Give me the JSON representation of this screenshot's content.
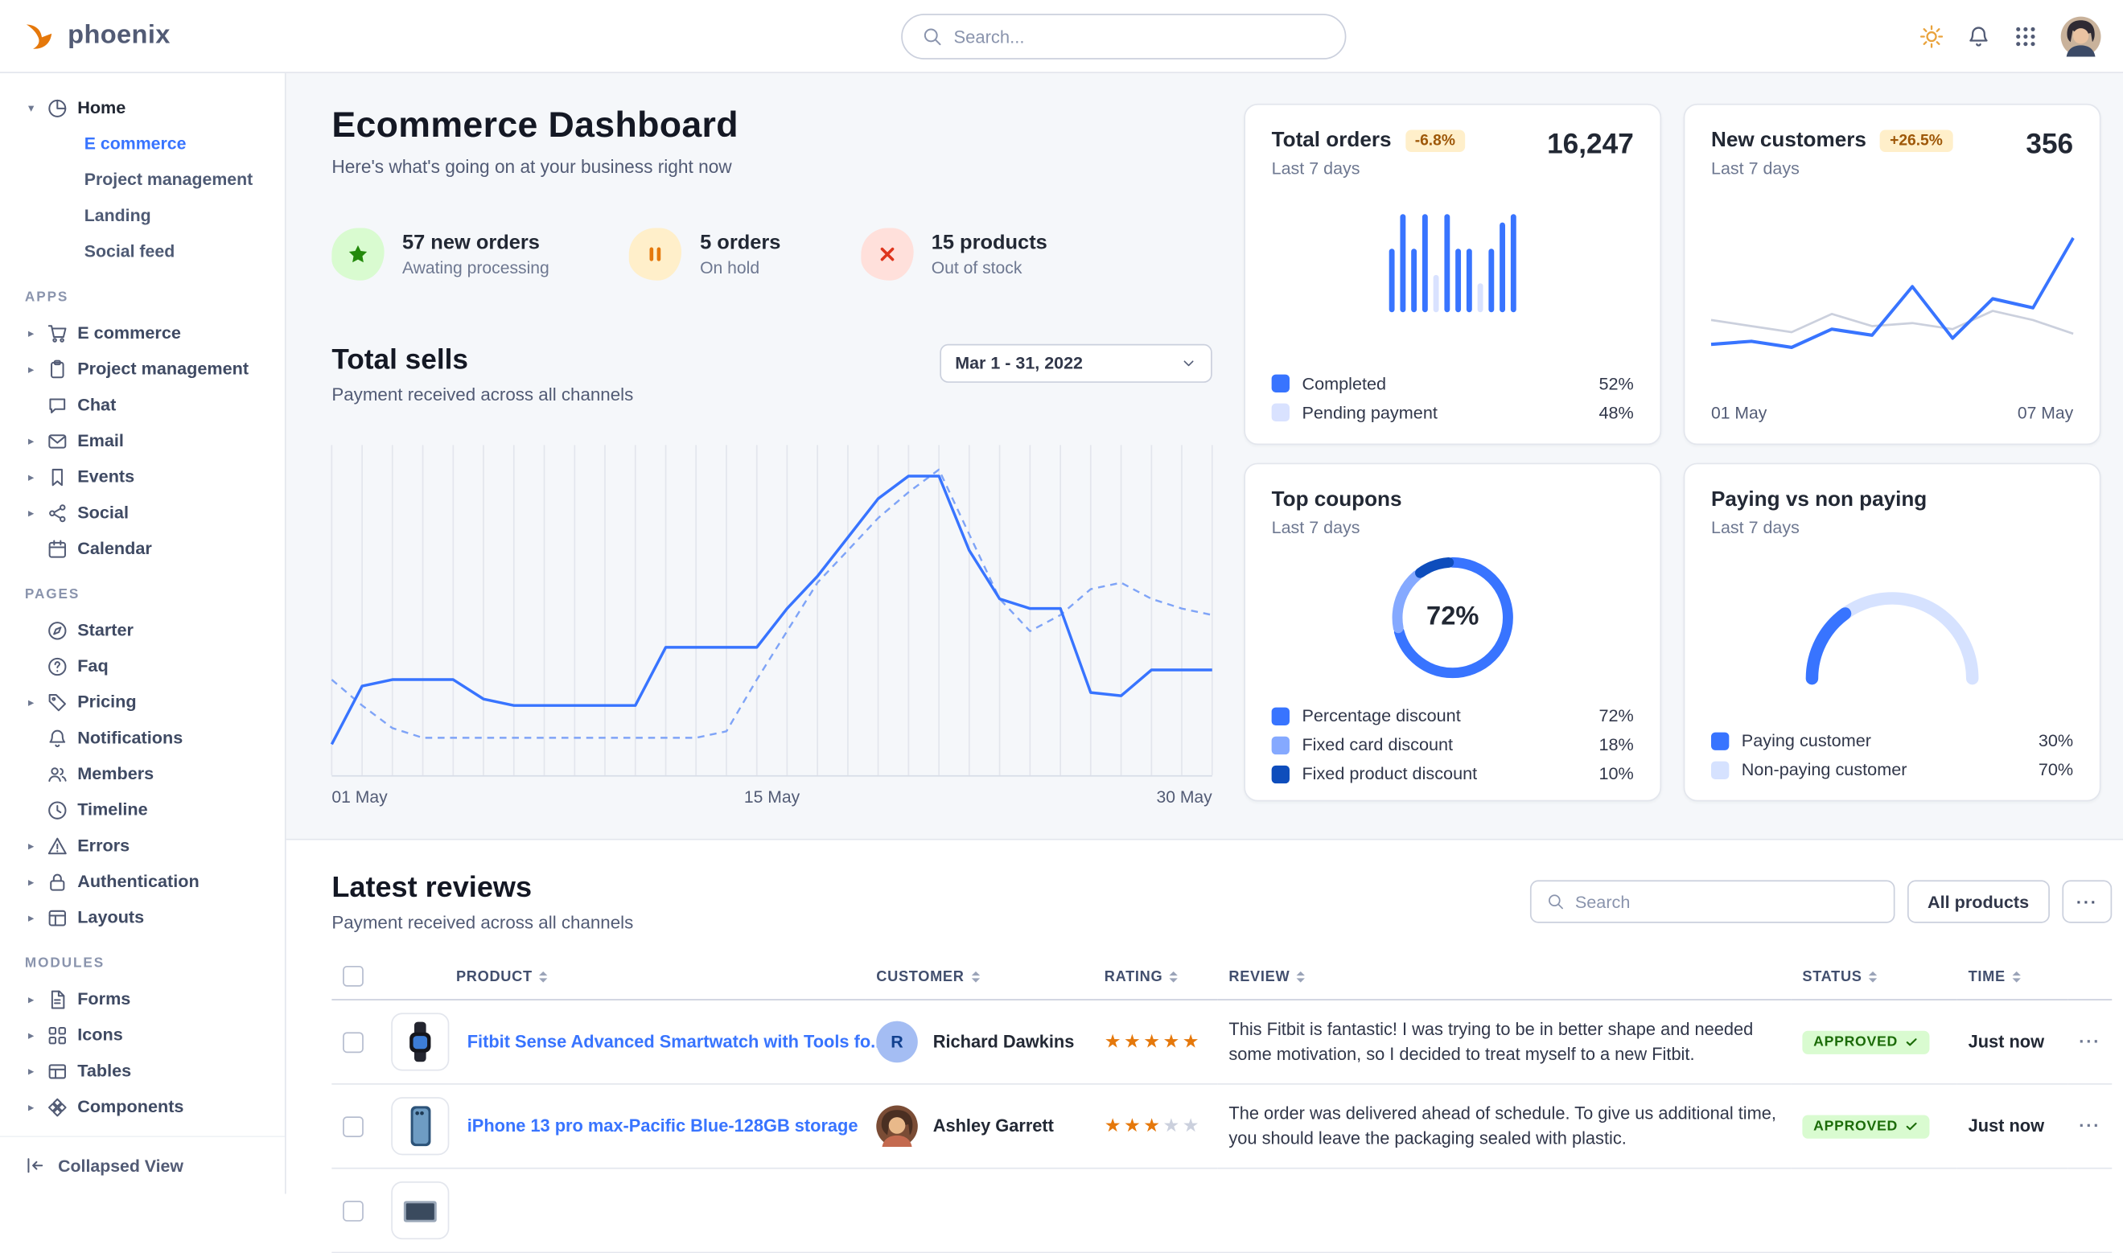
{
  "colors": {
    "primary": "#3874ff",
    "success_text": "#1c6c09",
    "success_bg": "#d9fbd0",
    "warning_text": "#9e5708",
    "warning_bg": "#ffefca",
    "danger": "#de351d",
    "orange": "#e5780b"
  },
  "topbar": {
    "logo_text": "phoenix",
    "search_placeholder": "Search..."
  },
  "sidebar": {
    "home": {
      "label": "Home",
      "children": [
        {
          "label": "E commerce"
        },
        {
          "label": "Project management"
        },
        {
          "label": "Landing"
        },
        {
          "label": "Social feed"
        }
      ]
    },
    "sections": [
      {
        "title": "APPS",
        "items": [
          {
            "label": "E commerce"
          },
          {
            "label": "Project management"
          },
          {
            "label": "Chat"
          },
          {
            "label": "Email"
          },
          {
            "label": "Events"
          },
          {
            "label": "Social"
          },
          {
            "label": "Calendar"
          }
        ]
      },
      {
        "title": "PAGES",
        "items": [
          {
            "label": "Starter"
          },
          {
            "label": "Faq"
          },
          {
            "label": "Pricing"
          },
          {
            "label": "Notifications"
          },
          {
            "label": "Members"
          },
          {
            "label": "Timeline"
          },
          {
            "label": "Errors"
          },
          {
            "label": "Authentication"
          },
          {
            "label": "Layouts"
          }
        ]
      },
      {
        "title": "MODULES",
        "items": [
          {
            "label": "Forms"
          },
          {
            "label": "Icons"
          },
          {
            "label": "Tables"
          },
          {
            "label": "Components"
          }
        ]
      }
    ],
    "collapse_label": "Collapsed View"
  },
  "header": {
    "title": "Ecommerce Dashboard",
    "subtitle": "Here's what's going on at your business right now"
  },
  "stats": [
    {
      "value": "57 new orders",
      "sub": "Awating processing"
    },
    {
      "value": "5 orders",
      "sub": "On hold"
    },
    {
      "value": "15 products",
      "sub": "Out of stock"
    }
  ],
  "total_sells": {
    "title": "Total sells",
    "subtitle": "Payment received across all channels",
    "date_range": "Mar 1 - 31, 2022"
  },
  "cards": {
    "total_orders": {
      "title": "Total orders",
      "badge": "-6.8%",
      "period": "Last 7 days",
      "value": "16,247"
    },
    "new_customers": {
      "title": "New customers",
      "badge": "+26.5%",
      "period": "Last 7 days",
      "value": "356",
      "label_left": "01 May",
      "label_right": "07 May"
    },
    "top_coupons": {
      "title": "Top coupons",
      "period": "Last 7 days"
    },
    "paying": {
      "title": "Paying vs non paying",
      "period": "Last 7 days"
    }
  },
  "reviews": {
    "title": "Latest reviews",
    "subtitle": "Payment received across all channels",
    "search_placeholder": "Search",
    "all_products_label": "All products",
    "more_label": "···",
    "columns": [
      {
        "label": "Product"
      },
      {
        "label": "Customer"
      },
      {
        "label": "Rating"
      },
      {
        "label": "Review"
      },
      {
        "label": "Status"
      },
      {
        "label": "Time"
      }
    ],
    "rows": [
      {
        "product": "Fitbit Sense Advanced Smartwatch with Tools fo...",
        "customer": "Richard Dawkins",
        "avatar_initial": "R",
        "rating": 5,
        "review": "This Fitbit is fantastic! I was trying to be in better shape and needed some motivation, so I decided to treat myself to a new Fitbit.",
        "status": "APPROVED",
        "time": "Just now",
        "row_more": "···"
      },
      {
        "product": "iPhone 13 pro max-Pacific Blue-128GB storage",
        "customer": "Ashley Garrett",
        "rating": 3,
        "review": "The order was delivered ahead of schedule. To give us additional time, you should leave the packaging sealed with plastic.",
        "status": "APPROVED",
        "time": "Just now",
        "row_more": "···"
      }
    ]
  },
  "chart_data": [
    {
      "id": "total-sells",
      "type": "line",
      "x_labels": [
        "01 May",
        "15 May",
        "30 May"
      ],
      "ylim": [
        0,
        100
      ],
      "grid": "vertical",
      "series": [
        {
          "color": "#3874ff",
          "dashed": false,
          "values": [
            10,
            28,
            30,
            30,
            30,
            24,
            22,
            22,
            22,
            22,
            22,
            40,
            40,
            40,
            40,
            52,
            62,
            74,
            86,
            93,
            93,
            70,
            55,
            52,
            52,
            26,
            25,
            33,
            33,
            33
          ]
        },
        {
          "color": "#7fa4f7",
          "dashed": true,
          "values": [
            30,
            22,
            15,
            12,
            12,
            12,
            12,
            12,
            12,
            12,
            12,
            12,
            12,
            14,
            30,
            45,
            60,
            70,
            80,
            88,
            95,
            75,
            55,
            45,
            50,
            58,
            60,
            55,
            52,
            50
          ]
        }
      ]
    },
    {
      "id": "total-orders",
      "type": "bar",
      "values": [
        62,
        95,
        62,
        95,
        36,
        95,
        62,
        62,
        28,
        62,
        88,
        95
      ],
      "light_indices": [
        4,
        8
      ],
      "bar_color": "#3874ff",
      "light_color": "#d9e2ff",
      "legend": [
        {
          "label": "Completed",
          "value": "52%",
          "color": "#3874ff"
        },
        {
          "label": "Pending payment",
          "value": "48%",
          "color": "#d9e2ff"
        }
      ]
    },
    {
      "id": "new-customers",
      "type": "line",
      "x_labels": [
        "01 May",
        "07 May"
      ],
      "series": [
        {
          "color": "#3874ff",
          "values": [
            18,
            20,
            16,
            28,
            24,
            56,
            22,
            48,
            42,
            88
          ]
        },
        {
          "color": "#cbd0dd",
          "values": [
            34,
            30,
            26,
            38,
            30,
            32,
            28,
            40,
            34,
            25
          ]
        }
      ]
    },
    {
      "id": "top-coupons",
      "type": "donut",
      "center_label": "72%",
      "segments": [
        {
          "label": "Percentage discount",
          "pct": 72,
          "value": "72%",
          "color": "#3874ff"
        },
        {
          "label": "Fixed card discount",
          "pct": 18,
          "value": "18%",
          "color": "#85a9ff"
        },
        {
          "label": "Fixed product discount",
          "pct": 10,
          "value": "10%",
          "color": "#0e4dbc"
        }
      ]
    },
    {
      "id": "paying",
      "type": "gauge",
      "segments": [
        {
          "label": "Paying customer",
          "pct": 30,
          "value": "30%",
          "color": "#3874ff"
        },
        {
          "label": "Non-paying customer",
          "pct": 70,
          "value": "70%",
          "color": "#d6e2ff"
        }
      ]
    }
  ]
}
